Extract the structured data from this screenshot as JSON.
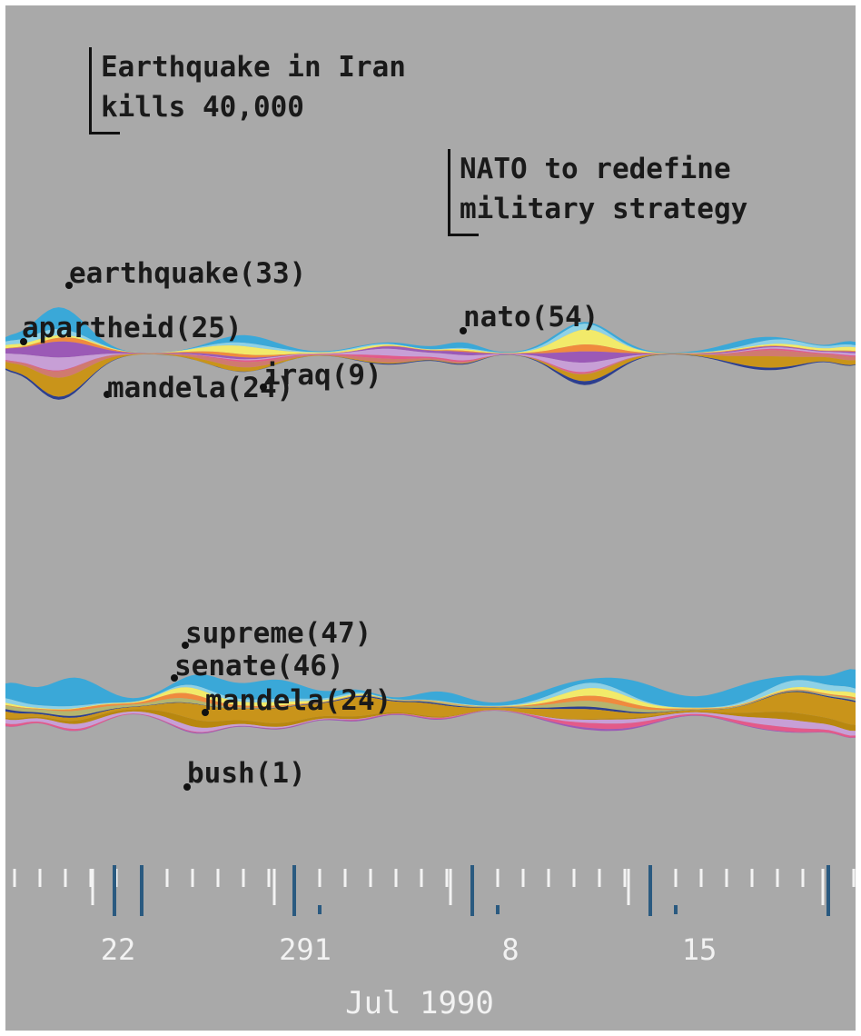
{
  "chart_data": {
    "type": "area",
    "title": "",
    "annotations": [
      {
        "lines": [
          "Earthquake in Iran",
          "kills 40,000"
        ]
      },
      {
        "lines": [
          "NATO to redefine",
          "military strategy"
        ]
      }
    ],
    "streams": [
      {
        "terms": [
          {
            "text": "earthquake(33)"
          },
          {
            "text": "apartheid(25)"
          },
          {
            "text": "mandela(24)"
          },
          {
            "text": "iraq(9)"
          },
          {
            "text": "nato(54)"
          }
        ]
      },
      {
        "terms": [
          {
            "text": "supreme(47)"
          },
          {
            "text": "senate(46)"
          },
          {
            "text": "mandela(24)"
          },
          {
            "text": "bush(1)"
          }
        ]
      }
    ],
    "x_axis": {
      "tick_labels": [
        "22",
        "291",
        "8",
        "15"
      ],
      "month_label": "Jul 1990"
    },
    "layer_colors": [
      "#c9941a",
      "#b8870f",
      "#d07a6f",
      "#e35a8a",
      "#9b59b6",
      "#c79fd6",
      "#7a3d8f",
      "#2c3e8f",
      "#57c4d6",
      "#f2ea6a",
      "#f08a3e",
      "#3aa8d8",
      "#8ed1e6",
      "#b5b56e"
    ]
  }
}
